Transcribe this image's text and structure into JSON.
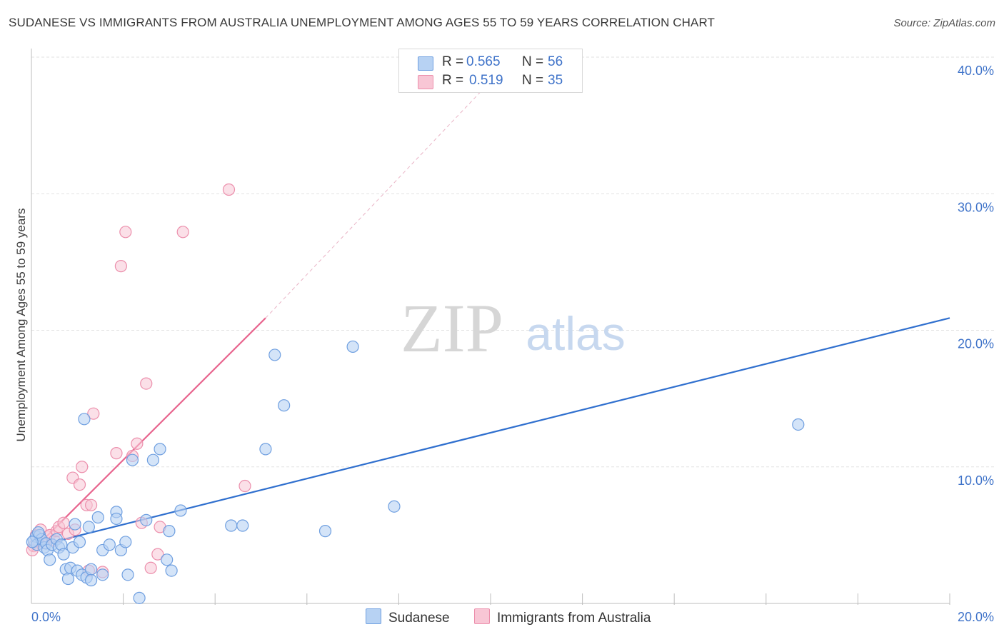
{
  "title": "SUDANESE VS IMMIGRANTS FROM AUSTRALIA UNEMPLOYMENT AMONG AGES 55 TO 59 YEARS CORRELATION CHART",
  "source": "Source: ZipAtlas.com",
  "watermark": {
    "zip": "ZIP",
    "atlas": "atlas"
  },
  "legend": {
    "series1": {
      "r_label": "R =",
      "r_value": "0.565",
      "n_label": "N =",
      "n_value": "56"
    },
    "series2": {
      "r_label": "R =",
      "r_value": "0.519",
      "n_label": "N =",
      "n_value": "35"
    }
  },
  "colors": {
    "blue_fill": "#b7d2f3",
    "blue_stroke": "#6f9fe0",
    "blue_line": "#2f6fce",
    "pink_fill": "#f8c6d5",
    "pink_stroke": "#ec8fac",
    "pink_line": "#e8668f",
    "axis_text": "#3f73c9",
    "grid": "#e2e2e2"
  },
  "chart_data": {
    "type": "scatter",
    "title": "SUDANESE VS IMMIGRANTS FROM AUSTRALIA UNEMPLOYMENT AMONG AGES 55 TO 59 YEARS CORRELATION CHART",
    "xlabel": "",
    "ylabel": "Unemployment Among Ages 55 to 59 years",
    "xlim": [
      0,
      20
    ],
    "ylim": [
      0,
      40
    ],
    "x_tick_labels": [
      "0.0%",
      "20.0%"
    ],
    "y_ticks": [
      10,
      20,
      30,
      40
    ],
    "y_tick_labels": [
      "10.0%",
      "20.0%",
      "30.0%",
      "40.0%"
    ],
    "grid": true,
    "legend_placement": "top-center",
    "series": [
      {
        "name": "Sudanese",
        "r": 0.565,
        "n": 56,
        "trend": {
          "x0": 0,
          "y0": 4.1,
          "x1": 20,
          "y1": 20.9
        },
        "points": [
          [
            0.05,
            4.6
          ],
          [
            0.1,
            4.9
          ],
          [
            0.12,
            4.3
          ],
          [
            0.18,
            5.0
          ],
          [
            0.22,
            4.7
          ],
          [
            0.28,
            4.1
          ],
          [
            0.32,
            4.4
          ],
          [
            0.35,
            3.9
          ],
          [
            0.4,
            3.2
          ],
          [
            0.45,
            4.3
          ],
          [
            0.55,
            4.7
          ],
          [
            0.6,
            4.1
          ],
          [
            0.65,
            4.3
          ],
          [
            0.7,
            3.6
          ],
          [
            0.75,
            2.5
          ],
          [
            0.8,
            1.8
          ],
          [
            0.85,
            2.6
          ],
          [
            0.9,
            4.1
          ],
          [
            0.95,
            5.8
          ],
          [
            1.0,
            2.4
          ],
          [
            1.05,
            4.5
          ],
          [
            1.1,
            2.1
          ],
          [
            1.15,
            13.5
          ],
          [
            1.2,
            1.9
          ],
          [
            1.25,
            5.6
          ],
          [
            1.3,
            2.5
          ],
          [
            1.3,
            1.7
          ],
          [
            1.45,
            6.3
          ],
          [
            1.55,
            2.1
          ],
          [
            1.55,
            3.9
          ],
          [
            1.7,
            4.3
          ],
          [
            1.85,
            6.7
          ],
          [
            1.85,
            6.2
          ],
          [
            1.95,
            3.9
          ],
          [
            2.05,
            4.5
          ],
          [
            2.1,
            2.1
          ],
          [
            2.2,
            10.5
          ],
          [
            2.35,
            0.4
          ],
          [
            2.5,
            6.1
          ],
          [
            2.65,
            10.5
          ],
          [
            2.8,
            11.3
          ],
          [
            2.95,
            3.2
          ],
          [
            3.0,
            5.3
          ],
          [
            3.05,
            2.4
          ],
          [
            3.25,
            6.8
          ],
          [
            4.35,
            5.7
          ],
          [
            4.6,
            5.7
          ],
          [
            5.1,
            11.3
          ],
          [
            5.3,
            18.2
          ],
          [
            5.5,
            14.5
          ],
          [
            6.4,
            5.3
          ],
          [
            7.0,
            18.8
          ],
          [
            7.9,
            7.1
          ],
          [
            16.7,
            13.1
          ],
          [
            0.02,
            4.5
          ],
          [
            0.15,
            5.2
          ]
        ]
      },
      {
        "name": "Immigrants from Australia",
        "r": 0.519,
        "n": 35,
        "trend": {
          "x0": 0,
          "y0": 3.8,
          "x1": 5.1,
          "y1": 20.9
        },
        "trend_extension": {
          "x0": 5.1,
          "y0": 20.9,
          "x1": 10.5,
          "y1": 40
        },
        "points": [
          [
            0.05,
            4.2
          ],
          [
            0.1,
            5.0
          ],
          [
            0.15,
            4.6
          ],
          [
            0.2,
            5.4
          ],
          [
            0.3,
            4.4
          ],
          [
            0.35,
            4.9
          ],
          [
            0.4,
            5.0
          ],
          [
            0.5,
            4.6
          ],
          [
            0.55,
            5.3
          ],
          [
            0.6,
            5.6
          ],
          [
            0.7,
            5.9
          ],
          [
            0.8,
            5.1
          ],
          [
            0.9,
            9.2
          ],
          [
            0.95,
            5.4
          ],
          [
            1.05,
            8.7
          ],
          [
            1.1,
            10.0
          ],
          [
            1.2,
            7.2
          ],
          [
            1.25,
            2.4
          ],
          [
            1.3,
            7.2
          ],
          [
            1.35,
            13.9
          ],
          [
            1.55,
            2.3
          ],
          [
            1.85,
            11.0
          ],
          [
            1.95,
            24.7
          ],
          [
            2.05,
            27.2
          ],
          [
            2.2,
            10.8
          ],
          [
            2.3,
            11.7
          ],
          [
            2.4,
            5.9
          ],
          [
            2.5,
            16.1
          ],
          [
            2.6,
            2.6
          ],
          [
            2.75,
            3.6
          ],
          [
            2.8,
            5.6
          ],
          [
            3.3,
            27.2
          ],
          [
            4.3,
            30.3
          ],
          [
            4.65,
            8.6
          ],
          [
            0.02,
            3.9
          ]
        ]
      }
    ]
  }
}
